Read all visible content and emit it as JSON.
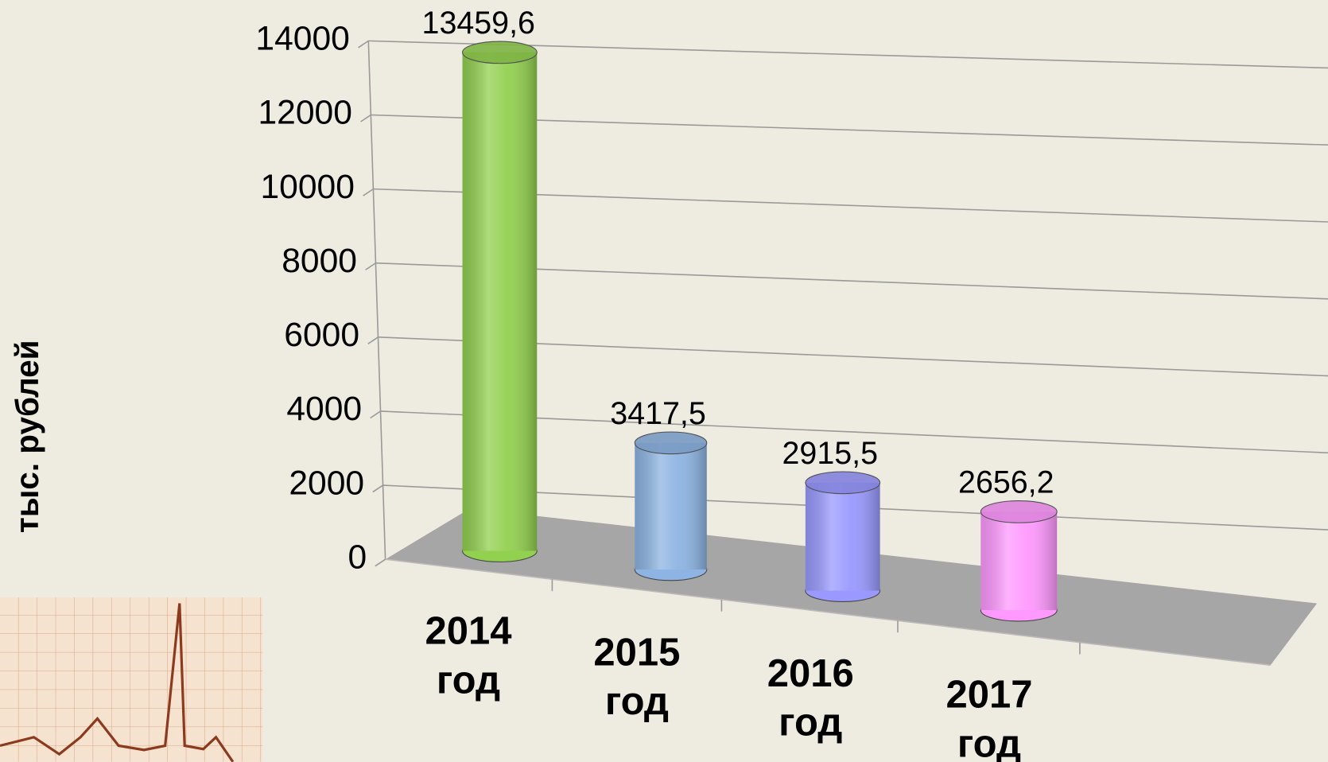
{
  "chart_data": {
    "type": "bar",
    "y_label": "тыс. рублей",
    "categories": [
      "2014 год",
      "2015 год",
      "2016 год",
      "2017 год"
    ],
    "values": [
      13459.6,
      3417.5,
      2915.5,
      2656.2
    ],
    "value_labels": [
      "13459,6",
      "3417,5",
      "2915,5",
      "2656,2"
    ],
    "colors": [
      "#92d050",
      "#8db4e2",
      "#9999ff",
      "#ff99ff"
    ],
    "ylim": [
      0,
      14000
    ],
    "yticks": [
      0,
      2000,
      4000,
      6000,
      8000,
      10000,
      12000,
      14000
    ],
    "grid": true
  }
}
